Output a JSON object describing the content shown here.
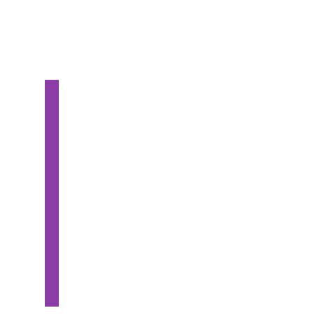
{
  "canvas": {
    "background_color": "#ffffff"
  },
  "bar": {
    "color": "#8a3ba5"
  }
}
